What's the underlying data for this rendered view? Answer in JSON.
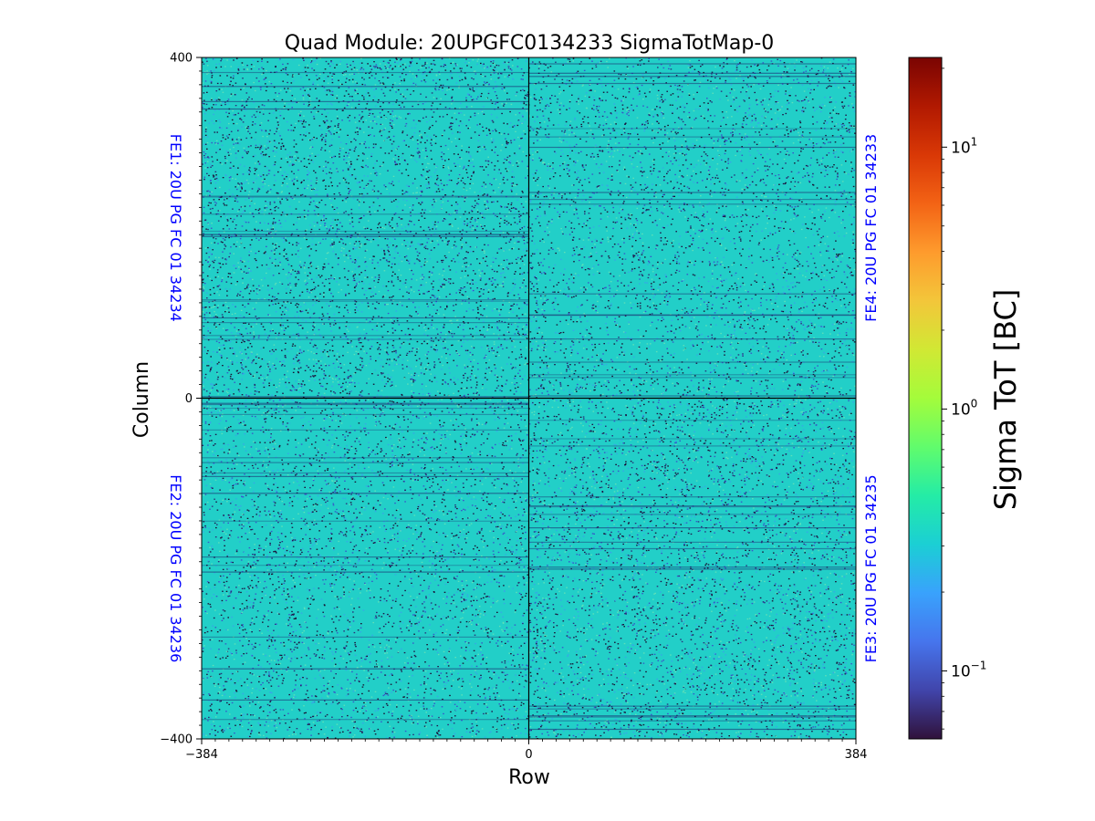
{
  "chart_data": {
    "type": "heatmap",
    "title": "Quad Module: 20UPGFC0134233 SigmaTotMap-0",
    "xlabel": "Row",
    "ylabel": "Column",
    "xlim": [
      -384,
      384
    ],
    "ylim": [
      -400,
      400
    ],
    "x_ticks": [
      {
        "value": -384,
        "label": "−384"
      },
      {
        "value": 0,
        "label": "0"
      },
      {
        "value": 384,
        "label": "384"
      }
    ],
    "y_ticks": [
      {
        "value": -400,
        "label": "−400"
      },
      {
        "value": 0,
        "label": "0"
      },
      {
        "value": 400,
        "label": "400"
      }
    ],
    "quadrants": [
      {
        "name": "FE1",
        "label": "FE1: 20U PG FC 01 34234",
        "x_range": [
          -384,
          0
        ],
        "y_range": [
          0,
          400
        ],
        "label_side": "left",
        "density": 0.34
      },
      {
        "name": "FE4",
        "label": "FE4: 20U PG FC 01 34233",
        "x_range": [
          0,
          384
        ],
        "y_range": [
          0,
          400
        ],
        "label_side": "right",
        "density": 0.27
      },
      {
        "name": "FE2",
        "label": "FE2: 20U PG FC 01 34236",
        "x_range": [
          -384,
          0
        ],
        "y_range": [
          -400,
          0
        ],
        "label_side": "left",
        "density": 0.28
      },
      {
        "name": "FE3",
        "label": "FE3: 20U PG FC 01 34235",
        "x_range": [
          0,
          384
        ],
        "y_range": [
          -400,
          0
        ],
        "label_side": "right",
        "density": 0.31
      }
    ],
    "quadrant_label_color": "#0000ff",
    "colorbar": {
      "label": "Sigma ToT [BC]",
      "scale": "log",
      "range": [
        0.055,
        22
      ],
      "ticks": [
        {
          "value": 0.1,
          "base": "10",
          "exp": "−1"
        },
        {
          "value": 1,
          "base": "10",
          "exp": "0"
        },
        {
          "value": 10,
          "base": "10",
          "exp": "1"
        }
      ],
      "colormap": [
        "#30123b",
        "#4145ab",
        "#4675ed",
        "#39a2fc",
        "#1bcfd4",
        "#24eca6",
        "#61fc6c",
        "#a4fc3b",
        "#d1e834",
        "#f3c63a",
        "#fe9b2d",
        "#f36315",
        "#d93806",
        "#b11901",
        "#7a0402"
      ]
    },
    "dominant_value": 0.3,
    "background_color": "#22cfc8"
  }
}
